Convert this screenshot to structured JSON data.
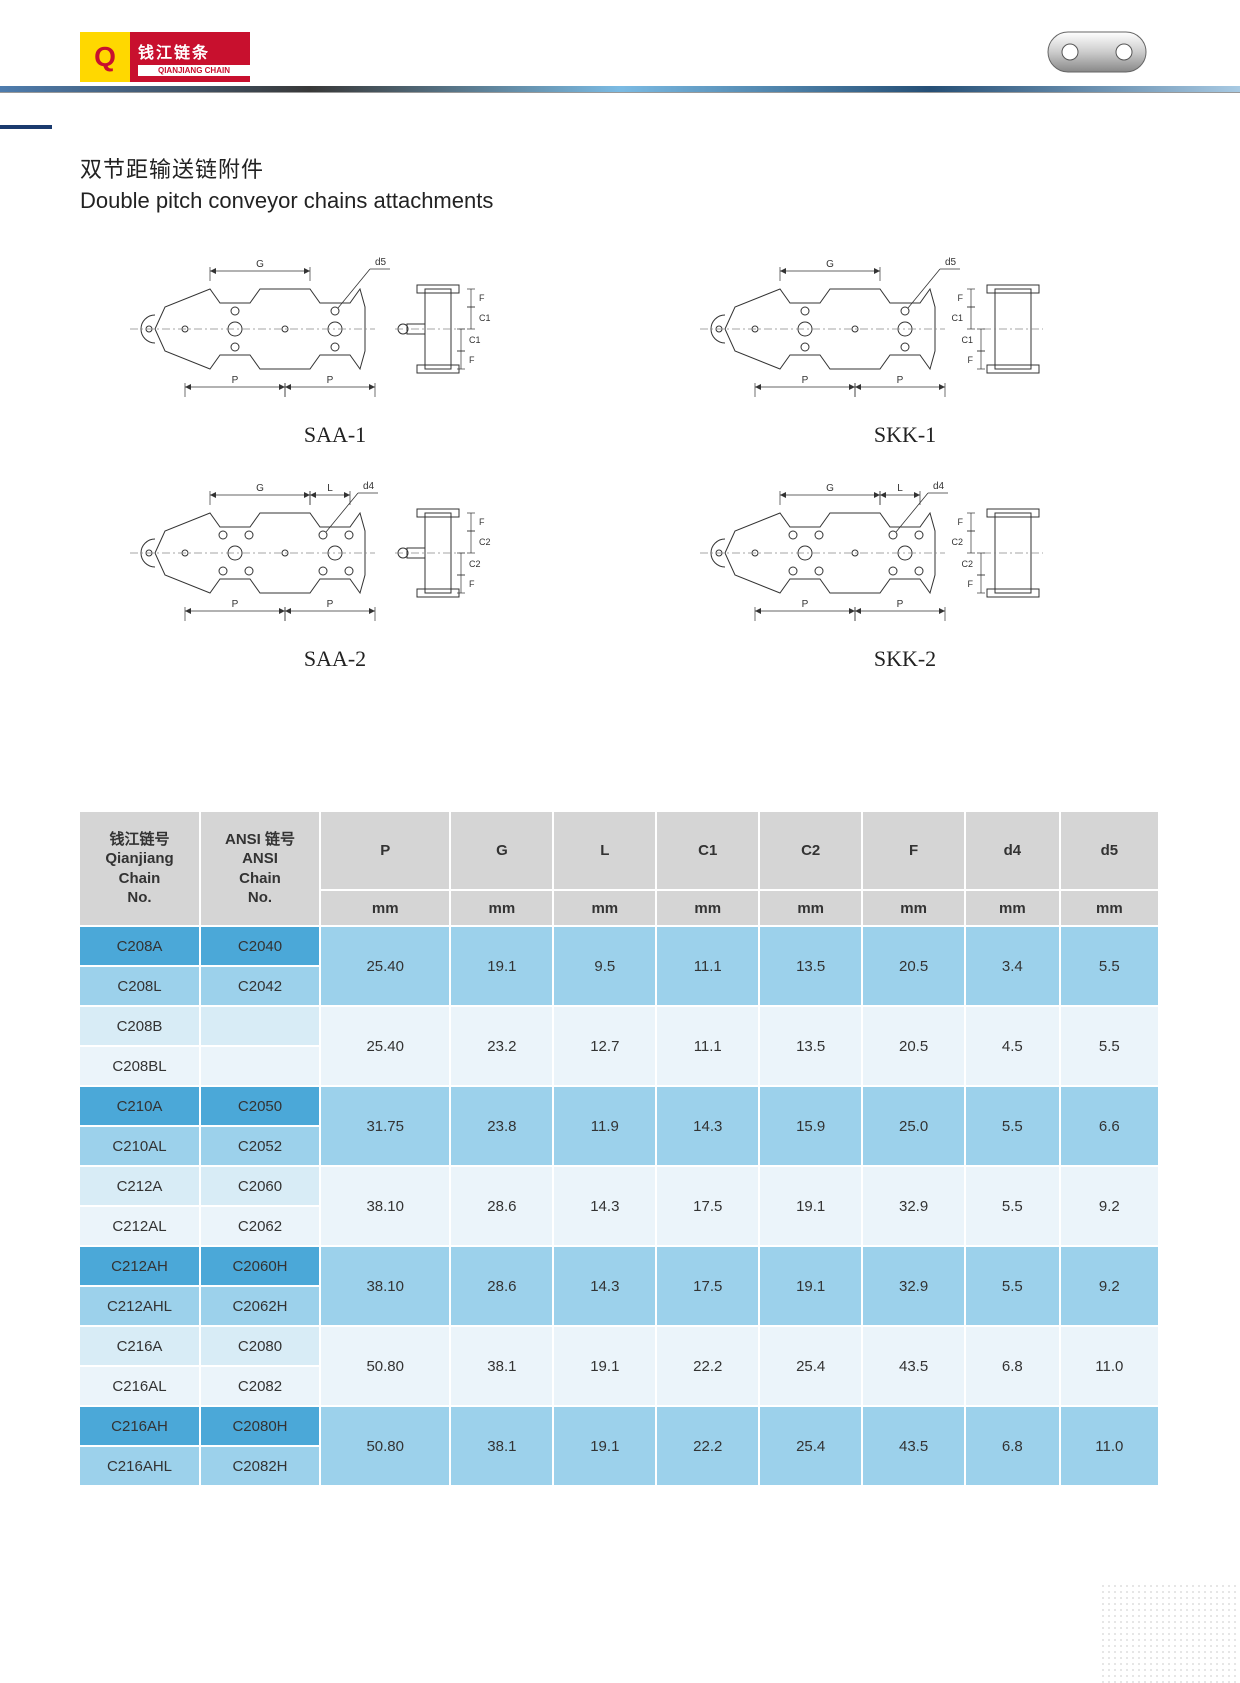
{
  "logo": {
    "cn": "钱江链条",
    "en": "QIANJIANG CHAIN"
  },
  "title": {
    "cn": "双节距输送链附件",
    "en": "Double pitch conveyor chains attachments"
  },
  "diagrams": [
    {
      "label": "SAA-1",
      "G": "G",
      "P": "P",
      "d": "d5",
      "F": "F",
      "Cu": "C1",
      "Cl": "C1",
      "L": "",
      "type": "single",
      "side": "SAA"
    },
    {
      "label": "SKK-1",
      "G": "G",
      "P": "P",
      "d": "d5",
      "F": "F",
      "Cu": "C1",
      "Cl": "C1",
      "L": "",
      "type": "single",
      "side": "SKK"
    },
    {
      "label": "SAA-2",
      "G": "G",
      "P": "P",
      "d": "d4",
      "F": "F",
      "Cu": "C2",
      "Cl": "C2",
      "L": "L",
      "type": "double",
      "side": "SAA"
    },
    {
      "label": "SKK-2",
      "G": "G",
      "P": "P",
      "d": "d4",
      "F": "F",
      "Cu": "C2",
      "Cl": "C2",
      "L": "L",
      "type": "double",
      "side": "SKK"
    }
  ],
  "table": {
    "headers": [
      {
        "cn": "钱江链号",
        "en1": "Qianjiang",
        "en2": "Chain",
        "en3": "No."
      },
      {
        "cn": "ANSI 链号",
        "en1": "ANSI",
        "en2": "Chain",
        "en3": "No."
      }
    ],
    "dim_headers": [
      "P",
      "G",
      "L",
      "C1",
      "C2",
      "F",
      "d4",
      "d5"
    ],
    "unit": "mm",
    "row_colors": {
      "group_a": [
        "#4ba8d8",
        "#9cd1eb"
      ],
      "group_b": [
        "#d8ecf6",
        "#ebf4fa"
      ],
      "header_bg": "#d5d5d5",
      "border": "#ffffff"
    },
    "groups": [
      {
        "style": "a",
        "codes_qj": [
          "C208A",
          "C208L"
        ],
        "codes_ansi": [
          "C2040",
          "C2042"
        ],
        "vals": [
          "25.40",
          "19.1",
          "9.5",
          "11.1",
          "13.5",
          "20.5",
          "3.4",
          "5.5"
        ]
      },
      {
        "style": "b",
        "codes_qj": [
          "C208B",
          "C208BL"
        ],
        "codes_ansi": [
          "",
          ""
        ],
        "vals": [
          "25.40",
          "23.2",
          "12.7",
          "11.1",
          "13.5",
          "20.5",
          "4.5",
          "5.5"
        ]
      },
      {
        "style": "a",
        "codes_qj": [
          "C210A",
          "C210AL"
        ],
        "codes_ansi": [
          "C2050",
          "C2052"
        ],
        "vals": [
          "31.75",
          "23.8",
          "11.9",
          "14.3",
          "15.9",
          "25.0",
          "5.5",
          "6.6"
        ]
      },
      {
        "style": "b",
        "codes_qj": [
          "C212A",
          "C212AL"
        ],
        "codes_ansi": [
          "C2060",
          "C2062"
        ],
        "vals": [
          "38.10",
          "28.6",
          "14.3",
          "17.5",
          "19.1",
          "32.9",
          "5.5",
          "9.2"
        ]
      },
      {
        "style": "a",
        "codes_qj": [
          "C212AH",
          "C212AHL"
        ],
        "codes_ansi": [
          "C2060H",
          "C2062H"
        ],
        "vals": [
          "38.10",
          "28.6",
          "14.3",
          "17.5",
          "19.1",
          "32.9",
          "5.5",
          "9.2"
        ]
      },
      {
        "style": "b",
        "codes_qj": [
          "C216A",
          "C216AL"
        ],
        "codes_ansi": [
          "C2080",
          "C2082"
        ],
        "vals": [
          "50.80",
          "38.1",
          "19.1",
          "22.2",
          "25.4",
          "43.5",
          "6.8",
          "11.0"
        ]
      },
      {
        "style": "a",
        "codes_qj": [
          "C216AH",
          "C216AHL"
        ],
        "codes_ansi": [
          "C2080H",
          "C2082H"
        ],
        "vals": [
          "50.80",
          "38.1",
          "19.1",
          "22.2",
          "25.4",
          "43.5",
          "6.8",
          "11.0"
        ]
      }
    ]
  },
  "diagram_style": {
    "stroke": "#333",
    "stroke_width": 1,
    "centerline_color": "#888",
    "font": "9px Arial"
  }
}
